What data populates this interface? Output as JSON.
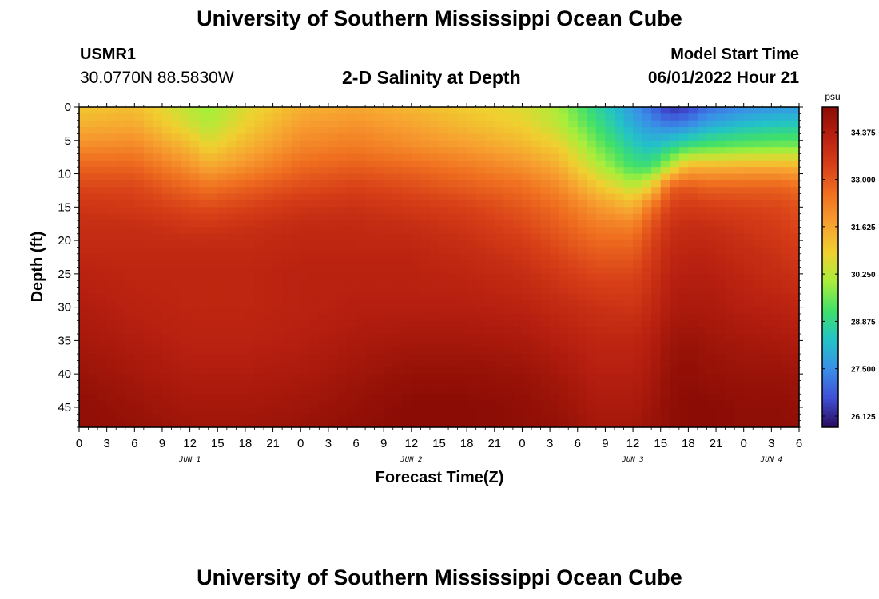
{
  "header": {
    "title": "University of Southern Mississippi Ocean Cube",
    "station_id": "USMR1",
    "station_coords": "30.0770N  88.5830W",
    "plot_title": "2-D Salinity at Depth",
    "start_label": "Model Start Time",
    "start_value": "06/01/2022 Hour 21"
  },
  "footer": {
    "title": "University of Southern Mississippi Ocean Cube"
  },
  "colors": {
    "scale": [
      "#2a0a5e",
      "#3f4fd6",
      "#3a8fe8",
      "#22c3c8",
      "#3fe06a",
      "#a8ee3a",
      "#f0d030",
      "#f7a030",
      "#f07020",
      "#d84018",
      "#b82010",
      "#8a0c04"
    ]
  },
  "chart_data": {
    "type": "heatmap",
    "title": "2-D Salinity at Depth",
    "xlabel": "Forecast Time(Z)",
    "ylabel": "Depth (ft)",
    "x_range_hours": [
      0,
      78
    ],
    "y_range_ft": [
      0,
      48
    ],
    "x_tick_labels": [
      "0",
      "3",
      "6",
      "9",
      "12",
      "15",
      "18",
      "21",
      "0",
      "3",
      "6",
      "9",
      "12",
      "15",
      "18",
      "21",
      "0",
      "3",
      "6",
      "9",
      "12",
      "15",
      "18",
      "21",
      "0",
      "3",
      "6"
    ],
    "y_tick_labels": [
      "0",
      "5",
      "10",
      "15",
      "20",
      "25",
      "30",
      "35",
      "40",
      "45"
    ],
    "day_labels": [
      "JUN 1",
      "JUN 2",
      "JUN 3",
      "JUN 4"
    ],
    "day_label_hours": [
      12,
      36,
      60,
      75
    ],
    "colorbar": {
      "unit": "psu",
      "min": 25.8,
      "max": 35.1,
      "tick_labels": [
        "34.375",
        "33.000",
        "31.625",
        "30.250",
        "28.875",
        "27.500",
        "26.125"
      ]
    },
    "depths_ft": [
      0,
      3,
      6,
      9,
      12,
      15,
      18,
      21,
      25,
      30,
      35,
      40,
      45,
      48
    ],
    "times_h": [
      0,
      6,
      12,
      14,
      18,
      24,
      30,
      36,
      42,
      48,
      52,
      56,
      60,
      62,
      64,
      66,
      68,
      72,
      76,
      78
    ],
    "salinity_psu": [
      [
        31.0,
        31.2,
        30.2,
        29.9,
        30.6,
        31.4,
        31.6,
        31.3,
        30.9,
        30.6,
        30.0,
        28.8,
        27.6,
        27.0,
        26.2,
        26.4,
        27.0,
        27.4,
        27.6,
        27.6
      ],
      [
        31.5,
        31.6,
        30.6,
        30.2,
        30.9,
        31.8,
        32.0,
        31.7,
        31.3,
        30.9,
        30.3,
        29.2,
        28.0,
        27.6,
        27.4,
        27.6,
        28.0,
        28.4,
        28.6,
        28.6
      ],
      [
        32.1,
        32.2,
        31.3,
        30.8,
        31.4,
        32.2,
        32.4,
        32.1,
        31.8,
        31.4,
        30.9,
        29.7,
        28.6,
        28.3,
        28.8,
        29.2,
        29.4,
        29.6,
        29.7,
        29.7
      ],
      [
        32.8,
        32.8,
        32.0,
        31.6,
        32.0,
        32.7,
        32.9,
        32.7,
        32.4,
        32.0,
        31.5,
        30.3,
        29.2,
        29.2,
        30.3,
        31.4,
        31.4,
        31.5,
        31.5,
        31.4
      ],
      [
        33.3,
        33.3,
        32.7,
        32.5,
        32.8,
        33.2,
        33.4,
        33.2,
        32.9,
        32.6,
        32.1,
        31.1,
        30.3,
        30.9,
        32.8,
        33.0,
        32.8,
        32.8,
        32.8,
        32.6
      ],
      [
        33.7,
        33.6,
        33.3,
        33.2,
        33.4,
        33.7,
        33.8,
        33.6,
        33.4,
        33.0,
        32.6,
        31.9,
        31.4,
        32.5,
        33.4,
        33.6,
        33.5,
        33.4,
        33.3,
        33.1
      ],
      [
        33.9,
        33.9,
        33.7,
        33.7,
        33.8,
        34.0,
        34.0,
        33.9,
        33.7,
        33.3,
        32.9,
        32.4,
        32.3,
        33.1,
        33.8,
        33.9,
        33.9,
        33.7,
        33.5,
        33.3
      ],
      [
        34.0,
        34.0,
        34.0,
        34.0,
        34.0,
        34.1,
        34.1,
        34.1,
        33.9,
        33.6,
        33.2,
        32.8,
        32.8,
        33.4,
        34.0,
        34.1,
        34.1,
        33.9,
        33.7,
        33.5
      ],
      [
        34.2,
        34.1,
        34.1,
        34.1,
        34.1,
        34.2,
        34.2,
        34.2,
        34.1,
        33.9,
        33.6,
        33.3,
        33.3,
        33.7,
        34.2,
        34.3,
        34.3,
        34.1,
        33.9,
        33.8
      ],
      [
        34.4,
        34.2,
        34.1,
        34.1,
        34.1,
        34.2,
        34.3,
        34.3,
        34.3,
        34.2,
        34.0,
        33.8,
        33.7,
        34.0,
        34.4,
        34.5,
        34.5,
        34.3,
        34.2,
        34.1
      ],
      [
        34.6,
        34.4,
        34.2,
        34.2,
        34.2,
        34.3,
        34.5,
        34.6,
        34.6,
        34.5,
        34.3,
        34.1,
        34.1,
        34.3,
        34.7,
        34.8,
        34.7,
        34.6,
        34.5,
        34.4
      ],
      [
        34.8,
        34.6,
        34.4,
        34.4,
        34.4,
        34.5,
        34.7,
        34.9,
        34.9,
        34.8,
        34.6,
        34.3,
        34.3,
        34.5,
        34.9,
        35.0,
        34.9,
        34.8,
        34.8,
        34.7
      ],
      [
        35.0,
        34.8,
        34.6,
        34.6,
        34.6,
        34.7,
        34.9,
        35.1,
        35.1,
        35.0,
        34.8,
        34.5,
        34.5,
        34.7,
        35.0,
        35.1,
        35.1,
        35.0,
        35.0,
        34.9
      ],
      [
        35.0,
        34.9,
        34.7,
        34.7,
        34.7,
        34.8,
        35.0,
        35.1,
        35.1,
        35.0,
        34.9,
        34.6,
        34.6,
        34.8,
        35.0,
        35.1,
        35.1,
        35.0,
        35.0,
        35.0
      ]
    ]
  }
}
